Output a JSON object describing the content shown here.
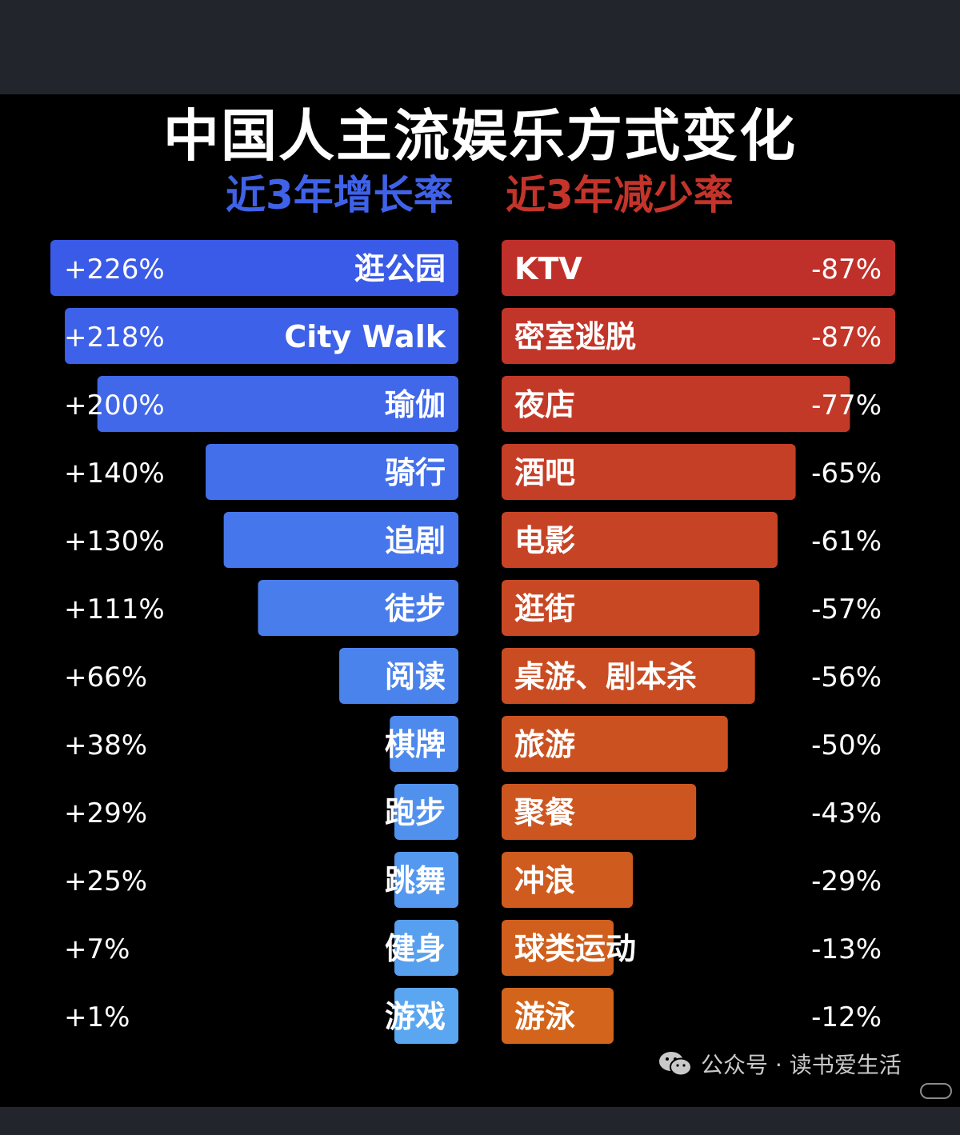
{
  "title": "中国人主流娱乐方式变化",
  "subtitle_left": "近3年增长率",
  "subtitle_right": "近3年减少率",
  "watermark": "公众号 · 读书爱生活",
  "colors": {
    "background": "#000000",
    "frame": "#23252c",
    "title": "#ffffff",
    "subtitle_left": "#3f62e8",
    "subtitle_right": "#c4342a",
    "growth_bar_top": "#3a5ae8",
    "growth_bar_bottom": "#5aa6f0",
    "decline_bar_top": "#c0302a",
    "decline_bar_bottom": "#d2641c",
    "bar_text": "#ffffff"
  },
  "icons": {
    "watermark": "wechat-icon"
  },
  "chart_data": [
    {
      "type": "bar",
      "orientation": "horizontal",
      "direction": "right-to-left",
      "title": "近3年增长率",
      "categories": [
        "逛公园",
        "City Walk",
        "瑜伽",
        "骑行",
        "追剧",
        "徒步",
        "阅读",
        "棋牌",
        "跑步",
        "跳舞",
        "健身",
        "游戏"
      ],
      "values": [
        226,
        218,
        200,
        140,
        130,
        111,
        66,
        38,
        29,
        25,
        7,
        1
      ],
      "value_labels": [
        "+226%",
        "+218%",
        "+200%",
        "+140%",
        "+130%",
        "+111%",
        "+66%",
        "+38%",
        "+29%",
        "+25%",
        "+7%",
        "+1%"
      ]
    },
    {
      "type": "bar",
      "orientation": "horizontal",
      "direction": "left-to-right",
      "title": "近3年减少率",
      "categories": [
        "KTV",
        "密室逃脱",
        "夜店",
        "酒吧",
        "电影",
        "逛街",
        "桌游、剧本杀",
        "旅游",
        "聚餐",
        "冲浪",
        "球类运动",
        "游泳"
      ],
      "values": [
        -87,
        -87,
        -77,
        -65,
        -61,
        -57,
        -56,
        -50,
        -43,
        -29,
        -13,
        -12
      ],
      "value_labels": [
        "-87%",
        "-87%",
        "-77%",
        "-65%",
        "-61%",
        "-57%",
        "-56%",
        "-50%",
        "-43%",
        "-29%",
        "-13%",
        "-12%"
      ]
    }
  ]
}
